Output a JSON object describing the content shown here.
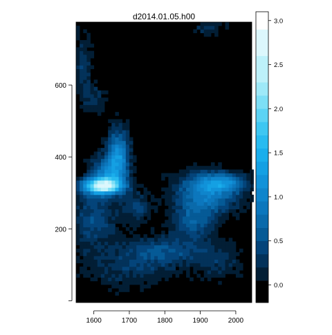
{
  "chart_data": {
    "type": "heatmap",
    "title": "d2014.01.05.h00",
    "xlabel": "",
    "ylabel": "",
    "xlim": [
      1550,
      2045
    ],
    "ylim": [
      -5,
      775
    ],
    "x_ticks": [
      1600,
      1700,
      1800,
      1900,
      2000
    ],
    "y_ticks": [
      200,
      400,
      600
    ],
    "grid": false,
    "colorbar": {
      "range": [
        -0.2,
        3.1
      ],
      "ticks": [
        0.0,
        0.5,
        1.0,
        1.5,
        2.0,
        2.5,
        3.0
      ],
      "levels": [
        -0.2,
        0.05,
        0.2,
        0.35,
        0.5,
        0.65,
        0.8,
        0.95,
        1.1,
        1.25,
        1.4,
        1.55,
        1.7,
        1.85,
        2.0,
        2.15,
        2.3,
        2.6,
        2.9,
        3.1
      ],
      "colors": [
        "#000000",
        "#021e35",
        "#03325a",
        "#04447a",
        "#055a96",
        "#0a6aab",
        "#0c77bd",
        "#0f85cc",
        "#1192d9",
        "#14a0e3",
        "#1aaeec",
        "#28bbf0",
        "#3ec7f2",
        "#5cd3f4",
        "#7ddff6",
        "#9ee9f8",
        "#bdf1fa",
        "#dcf7fc",
        "#ffffff"
      ]
    },
    "blobs": [
      {
        "x": 1625,
        "y": 320,
        "sx": 55,
        "sy": 22,
        "v": 2.4
      },
      {
        "x": 1670,
        "y": 410,
        "sx": 30,
        "sy": 70,
        "v": 1.1
      },
      {
        "x": 1640,
        "y": 360,
        "sx": 45,
        "sy": 45,
        "v": 0.9
      },
      {
        "x": 1600,
        "y": 230,
        "sx": 60,
        "sy": 90,
        "v": 0.55
      },
      {
        "x": 1720,
        "y": 260,
        "sx": 40,
        "sy": 40,
        "v": 0.5
      },
      {
        "x": 1920,
        "y": 300,
        "sx": 90,
        "sy": 55,
        "v": 1.0
      },
      {
        "x": 1960,
        "y": 330,
        "sx": 70,
        "sy": 25,
        "v": 0.8
      },
      {
        "x": 1880,
        "y": 220,
        "sx": 60,
        "sy": 50,
        "v": 0.6
      },
      {
        "x": 1800,
        "y": 140,
        "sx": 110,
        "sy": 40,
        "v": 0.55
      },
      {
        "x": 1700,
        "y": 90,
        "sx": 120,
        "sy": 60,
        "v": 0.35
      },
      {
        "x": 1950,
        "y": 110,
        "sx": 70,
        "sy": 50,
        "v": 0.35
      },
      {
        "x": 1570,
        "y": 660,
        "sx": 25,
        "sy": 90,
        "v": 0.4
      },
      {
        "x": 1600,
        "y": 560,
        "sx": 35,
        "sy": 40,
        "v": 0.35
      },
      {
        "x": 1920,
        "y": 760,
        "sx": 50,
        "sy": 25,
        "v": 0.3
      }
    ]
  }
}
